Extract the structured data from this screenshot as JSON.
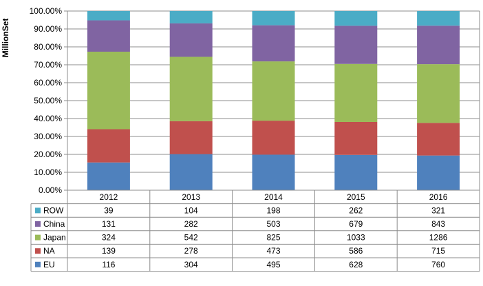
{
  "chart_data": {
    "type": "bar",
    "stacked": true,
    "normalized": true,
    "title": "",
    "ylabel": "MillionSet",
    "xlabel": "",
    "ylim": [
      0,
      100
    ],
    "y_ticks": [
      "0.00%",
      "10.00%",
      "20.00%",
      "30.00%",
      "40.00%",
      "50.00%",
      "60.00%",
      "70.00%",
      "80.00%",
      "90.00%",
      "100.00%"
    ],
    "grid": true,
    "legend_position": "bottom-table",
    "categories": [
      "2012",
      "2013",
      "2014",
      "2015",
      "2016"
    ],
    "series": [
      {
        "name": "EU",
        "color": "#4f81bd",
        "values": [
          116,
          304,
          495,
          628,
          760
        ]
      },
      {
        "name": "NA",
        "color": "#c0504d",
        "values": [
          139,
          278,
          473,
          586,
          715
        ]
      },
      {
        "name": "Japan",
        "color": "#9bbb59",
        "values": [
          324,
          542,
          825,
          1033,
          1286
        ]
      },
      {
        "name": "China",
        "color": "#8064a2",
        "values": [
          131,
          282,
          503,
          679,
          843
        ]
      },
      {
        "name": "ROW",
        "color": "#4bacc6",
        "values": [
          39,
          104,
          198,
          262,
          321
        ]
      }
    ],
    "table_row_order": [
      "ROW",
      "China",
      "Japan",
      "NA",
      "EU"
    ]
  }
}
